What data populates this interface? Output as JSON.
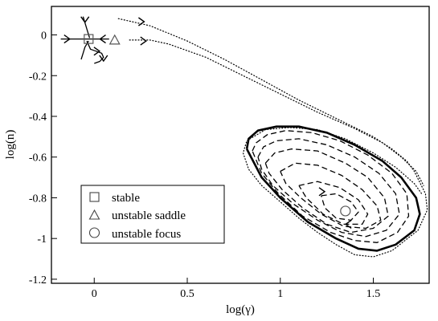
{
  "chart_data": {
    "type": "line",
    "title": "",
    "xlabel": "log(γ)",
    "ylabel": "log(n)",
    "xlim": [
      -0.23,
      1.8
    ],
    "ylim": [
      -1.22,
      0.14
    ],
    "grid": false,
    "legend_position": "bottom-left",
    "xticks": [
      {
        "value": 0,
        "label": "0"
      },
      {
        "value": 0.5,
        "label": "0.5"
      },
      {
        "value": 1,
        "label": "1"
      },
      {
        "value": 1.5,
        "label": "1.5"
      }
    ],
    "yticks": [
      {
        "value": 0,
        "label": "0"
      },
      {
        "value": -0.2,
        "label": "-0.2"
      },
      {
        "value": -0.4,
        "label": "-0.4"
      },
      {
        "value": -0.6,
        "label": "-0.6"
      },
      {
        "value": -0.8,
        "label": "-0.8"
      },
      {
        "value": -1,
        "label": "-1"
      },
      {
        "value": -1.2,
        "label": "-1.2"
      }
    ],
    "legend": [
      {
        "marker": "square",
        "label": "stable"
      },
      {
        "marker": "triangle",
        "label": "unstable saddle"
      },
      {
        "marker": "circle",
        "label": "unstable focus"
      }
    ],
    "fixed_points": [
      {
        "type": "stable",
        "marker": "square",
        "x": -0.03,
        "y": -0.02
      },
      {
        "type": "unstable saddle",
        "marker": "triangle",
        "x": 0.11,
        "y": -0.025
      },
      {
        "type": "unstable focus",
        "marker": "circle",
        "x": 1.35,
        "y": -0.865
      }
    ],
    "series": [
      {
        "style": "dotted",
        "x": [
          0.13,
          0.3,
          0.5,
          0.7,
          0.9,
          1.1,
          1.3,
          1.5,
          1.6,
          1.68,
          1.72,
          1.78,
          1.79,
          1.74,
          1.6,
          1.5,
          1.4,
          1.3,
          1.2,
          1.1,
          1.0,
          0.9,
          0.83,
          0.8,
          0.82,
          0.92,
          1.05,
          1.2,
          1.35,
          1.5,
          1.62,
          1.72,
          1.76
        ],
        "y": [
          0.08,
          0.045,
          -0.03,
          -0.12,
          -0.22,
          -0.32,
          -0.41,
          -0.5,
          -0.56,
          -0.62,
          -0.67,
          -0.78,
          -0.86,
          -0.96,
          -1.06,
          -1.09,
          -1.08,
          -1.03,
          -0.97,
          -0.9,
          -0.82,
          -0.74,
          -0.66,
          -0.58,
          -0.52,
          -0.465,
          -0.455,
          -0.465,
          -0.51,
          -0.58,
          -0.65,
          -0.73,
          -0.78
        ]
      },
      {
        "style": "dotted",
        "x": [
          0.19,
          0.3,
          0.4,
          0.6,
          0.8,
          1.0,
          1.2,
          1.4,
          1.55,
          1.65,
          1.73,
          1.77
        ],
        "y": [
          -0.025,
          -0.025,
          -0.045,
          -0.11,
          -0.2,
          -0.29,
          -0.38,
          -0.46,
          -0.53,
          -0.6,
          -0.67,
          -0.74
        ]
      },
      {
        "style": "solid-thick",
        "x": [
          0.82,
          0.83,
          0.88,
          0.98,
          1.1,
          1.25,
          1.4,
          1.55,
          1.65,
          1.73,
          1.75,
          1.72,
          1.62,
          1.52,
          1.42,
          1.3,
          1.15,
          1.0,
          0.9,
          0.82
        ],
        "y": [
          -0.56,
          -0.51,
          -0.47,
          -0.45,
          -0.45,
          -0.48,
          -0.54,
          -0.62,
          -0.7,
          -0.8,
          -0.88,
          -0.96,
          -1.03,
          -1.06,
          -1.05,
          -1.0,
          -0.92,
          -0.8,
          -0.7,
          -0.56
        ]
      },
      {
        "style": "dashed",
        "x": [
          0.85,
          0.87,
          0.93,
          1.03,
          1.17,
          1.32,
          1.47,
          1.6,
          1.68,
          1.69,
          1.63,
          1.52,
          1.4,
          1.27,
          1.12,
          0.99,
          0.9,
          0.85
        ],
        "y": [
          -0.57,
          -0.53,
          -0.49,
          -0.47,
          -0.48,
          -0.52,
          -0.59,
          -0.68,
          -0.78,
          -0.89,
          -0.97,
          -1.02,
          -1.01,
          -0.97,
          -0.89,
          -0.78,
          -0.68,
          -0.57
        ]
      },
      {
        "style": "dashed",
        "x": [
          0.88,
          0.91,
          0.98,
          1.1,
          1.25,
          1.4,
          1.53,
          1.62,
          1.64,
          1.57,
          1.46,
          1.33,
          1.2,
          1.07,
          0.96,
          0.9,
          0.88
        ],
        "y": [
          -0.6,
          -0.55,
          -0.52,
          -0.51,
          -0.54,
          -0.6,
          -0.68,
          -0.78,
          -0.88,
          -0.96,
          -0.99,
          -0.97,
          -0.91,
          -0.83,
          -0.74,
          -0.66,
          -0.6
        ]
      },
      {
        "style": "dashed",
        "x": [
          0.92,
          0.97,
          1.06,
          1.2,
          1.35,
          1.47,
          1.56,
          1.58,
          1.5,
          1.38,
          1.25,
          1.12,
          1.01,
          0.94,
          0.92
        ],
        "y": [
          -0.63,
          -0.58,
          -0.56,
          -0.57,
          -0.63,
          -0.7,
          -0.8,
          -0.89,
          -0.95,
          -0.97,
          -0.93,
          -0.85,
          -0.76,
          -0.68,
          -0.63
        ]
      },
      {
        "style": "dashed",
        "x": [
          1.0,
          1.08,
          1.2,
          1.33,
          1.44,
          1.52,
          1.54,
          1.46,
          1.34,
          1.22,
          1.11,
          1.03,
          1.0
        ],
        "y": [
          -0.67,
          -0.63,
          -0.64,
          -0.69,
          -0.76,
          -0.84,
          -0.91,
          -0.95,
          -0.94,
          -0.88,
          -0.8,
          -0.73,
          -0.67
        ]
      },
      {
        "style": "dashed",
        "x": [
          1.1,
          1.2,
          1.32,
          1.42,
          1.47,
          1.44,
          1.34,
          1.23,
          1.14,
          1.1
        ],
        "y": [
          -0.74,
          -0.72,
          -0.75,
          -0.81,
          -0.88,
          -0.93,
          -0.93,
          -0.88,
          -0.8,
          -0.74
        ]
      },
      {
        "style": "dashed",
        "x": [
          1.22,
          1.3,
          1.38,
          1.42,
          1.38,
          1.3,
          1.24,
          1.22
        ],
        "y": [
          -0.79,
          -0.78,
          -0.82,
          -0.87,
          -0.91,
          -0.9,
          -0.85,
          -0.79
        ]
      },
      {
        "style": "solid",
        "x": [
          -0.18,
          -0.1,
          -0.03,
          0.03,
          0.08
        ],
        "y": [
          -0.02,
          -0.02,
          -0.02,
          -0.02,
          -0.02
        ]
      },
      {
        "style": "solid",
        "x": [
          -0.06,
          -0.05,
          -0.04,
          -0.03,
          -0.025
        ],
        "y": [
          0.09,
          0.06,
          0.03,
          0.0,
          -0.015
        ]
      },
      {
        "style": "solid",
        "x": [
          -0.04,
          -0.02,
          0.01,
          0.04,
          0.05,
          0.03,
          0.0
        ],
        "y": [
          -0.03,
          -0.07,
          -0.08,
          -0.09,
          -0.11,
          -0.13,
          -0.14
        ]
      },
      {
        "style": "solid",
        "x": [
          -0.03,
          -0.05,
          -0.06,
          -0.07
        ],
        "y": [
          -0.03,
          -0.06,
          -0.09,
          -0.12
        ]
      }
    ],
    "arrows": [
      {
        "x": 0.26,
        "y": 0.065,
        "dir": "right"
      },
      {
        "x": 0.27,
        "y": -0.03,
        "dir": "right"
      },
      {
        "x": -0.14,
        "y": -0.02,
        "dir": "right"
      },
      {
        "x": 0.04,
        "y": -0.02,
        "dir": "left"
      },
      {
        "x": -0.05,
        "y": 0.07,
        "dir": "down"
      },
      {
        "x": 0.02,
        "y": -0.08,
        "dir": "right"
      },
      {
        "x": 0.05,
        "y": -0.12,
        "dir": "down"
      },
      {
        "x": 1.23,
        "y": -0.77,
        "dir": "right"
      },
      {
        "x": 1.36,
        "y": -0.93,
        "dir": "left"
      }
    ]
  }
}
